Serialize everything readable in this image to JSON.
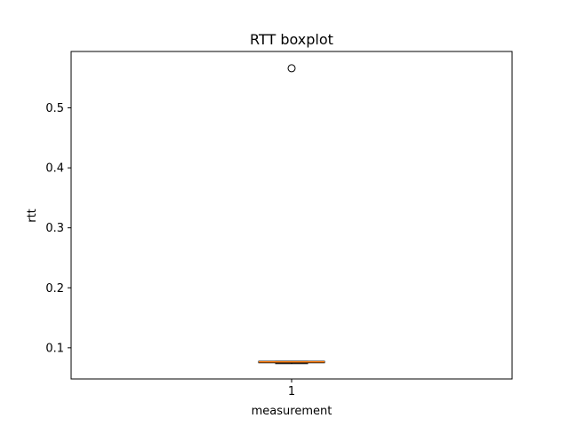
{
  "chart_data": {
    "type": "boxplot",
    "title": "RTT boxplot",
    "xlabel": "measurement",
    "ylabel": "rtt",
    "categories": [
      "1"
    ],
    "ylim": [
      0.048,
      0.594
    ],
    "yticks": [
      "0.1",
      "0.2",
      "0.3",
      "0.4",
      "0.5"
    ],
    "ytick_values": [
      0.1,
      0.2,
      0.3,
      0.4,
      0.5
    ],
    "boxes": [
      {
        "label": "1",
        "whisker_low": 0.0735,
        "q1": 0.075,
        "median": 0.0765,
        "q3": 0.0775,
        "whisker_high": 0.0775,
        "fliers": [
          0.566
        ]
      }
    ],
    "grid": false,
    "colors": {
      "median": "#ff7f0e",
      "box": "#000000"
    }
  }
}
